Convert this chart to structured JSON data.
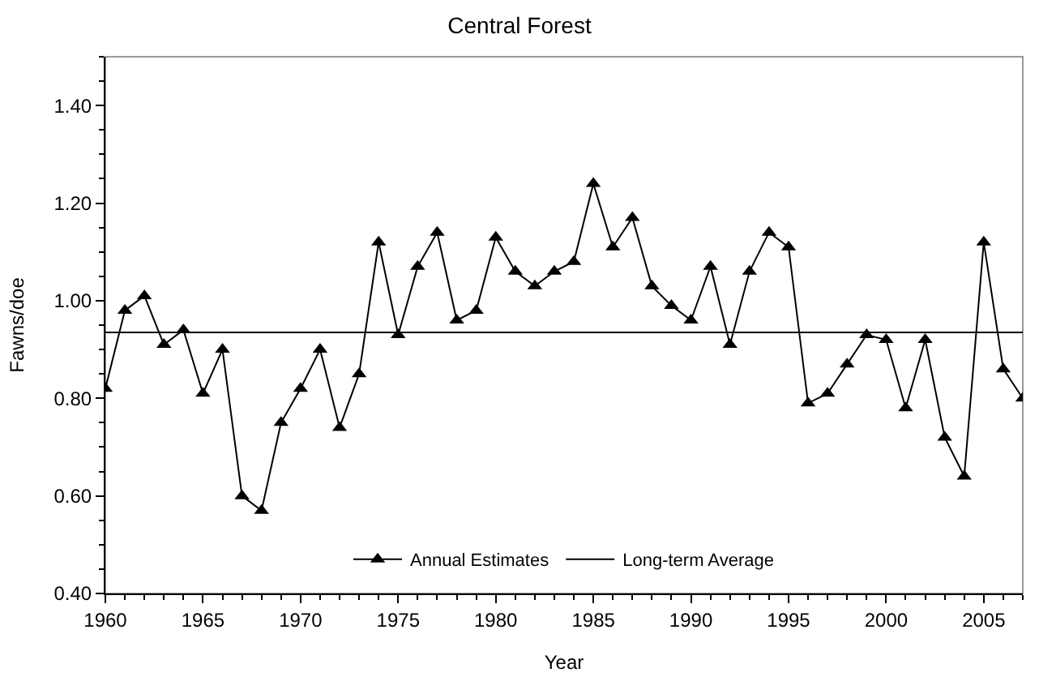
{
  "chart_data": {
    "type": "line",
    "title": "Central Forest",
    "xlabel": "Year",
    "ylabel": "Fawns/doe",
    "x": [
      1960,
      1961,
      1962,
      1963,
      1964,
      1965,
      1966,
      1967,
      1968,
      1969,
      1970,
      1971,
      1972,
      1973,
      1974,
      1975,
      1976,
      1977,
      1978,
      1979,
      1980,
      1981,
      1982,
      1983,
      1984,
      1985,
      1986,
      1987,
      1988,
      1989,
      1990,
      1991,
      1992,
      1993,
      1994,
      1995,
      1996,
      1997,
      1998,
      1999,
      2000,
      2001,
      2002,
      2003,
      2004,
      2005,
      2006,
      2007
    ],
    "series": [
      {
        "name": "Annual Estimates",
        "color": "#000000",
        "marker": "triangle",
        "line_style": "solid",
        "values": [
          0.82,
          0.98,
          1.01,
          0.91,
          0.94,
          0.81,
          0.9,
          0.6,
          0.57,
          0.75,
          0.82,
          0.9,
          0.74,
          0.85,
          1.12,
          0.93,
          1.07,
          1.14,
          0.96,
          0.98,
          1.13,
          1.06,
          1.03,
          1.06,
          1.08,
          1.24,
          1.11,
          1.17,
          1.03,
          0.99,
          0.96,
          1.07,
          0.91,
          1.06,
          1.14,
          1.11,
          0.79,
          0.81,
          0.87,
          0.93,
          0.92,
          0.78,
          0.92,
          0.72,
          0.64,
          1.12,
          0.86,
          0.8
        ]
      }
    ],
    "ref_lines": [
      {
        "axis": "y",
        "value": 0.935,
        "label": "Long-term Average",
        "color": "#000000",
        "line_style": "solid"
      }
    ],
    "xlim": [
      1960,
      2007
    ],
    "xticks": [
      1960,
      1965,
      1970,
      1975,
      1980,
      1985,
      1990,
      1995,
      2000,
      2005
    ],
    "ylim": [
      0.4,
      1.5
    ],
    "yticks": [
      {
        "value": 0.4,
        "label": "0.40"
      },
      {
        "value": 0.6,
        "label": "0.60"
      },
      {
        "value": 0.8,
        "label": "0.80"
      },
      {
        "value": 1.0,
        "label": "1.00"
      },
      {
        "value": 1.2,
        "label": "1.20"
      },
      {
        "value": 1.4,
        "label": "1.40"
      }
    ],
    "grid": false,
    "legend": "bottom"
  }
}
